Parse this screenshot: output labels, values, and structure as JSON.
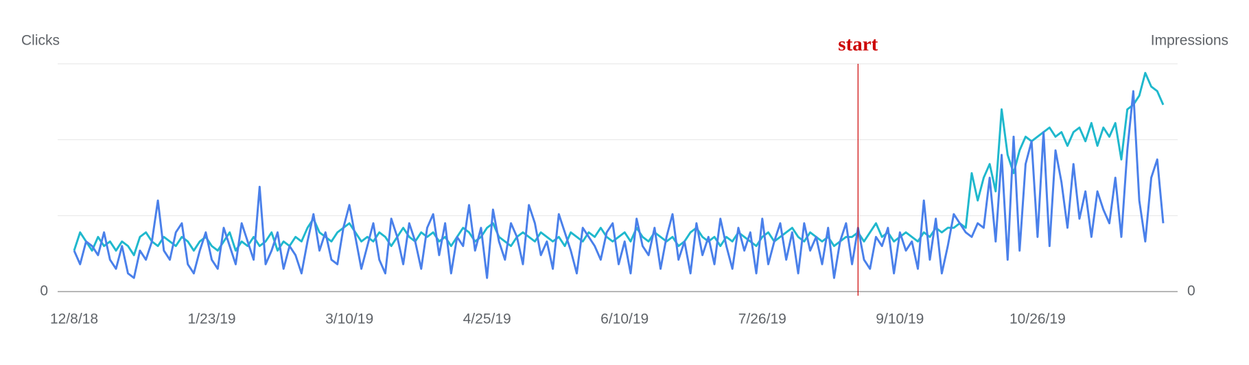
{
  "chart_data": {
    "type": "line",
    "categories": [
      "12/8/18",
      null,
      null,
      null,
      null,
      null,
      null,
      null,
      null,
      null,
      null,
      null,
      null,
      null,
      null,
      null,
      null,
      null,
      null,
      null,
      null,
      null,
      null,
      "1/23/19",
      null,
      null,
      null,
      null,
      null,
      null,
      null,
      null,
      null,
      null,
      null,
      null,
      null,
      null,
      null,
      null,
      null,
      null,
      null,
      null,
      null,
      null,
      "3/10/19",
      null,
      null,
      null,
      null,
      null,
      null,
      null,
      null,
      null,
      null,
      null,
      null,
      null,
      null,
      null,
      null,
      null,
      null,
      null,
      null,
      null,
      null,
      "4/25/19",
      null,
      null,
      null,
      null,
      null,
      null,
      null,
      null,
      null,
      null,
      null,
      null,
      null,
      null,
      null,
      null,
      null,
      null,
      null,
      null,
      null,
      null,
      "6/10/19",
      null,
      null,
      null,
      null,
      null,
      null,
      null,
      null,
      null,
      null,
      null,
      null,
      null,
      null,
      null,
      null,
      null,
      null,
      null,
      null,
      null,
      null,
      "7/26/19",
      null,
      null,
      null,
      null,
      null,
      null,
      null,
      null,
      null,
      null,
      null,
      null,
      null,
      null,
      null,
      null,
      null,
      null,
      null,
      null,
      null,
      null,
      "9/10/19",
      null,
      null,
      null,
      null,
      null,
      null,
      null,
      null,
      null,
      null,
      null,
      null,
      null,
      null,
      null,
      null,
      null,
      null,
      null,
      null,
      null,
      null,
      "10/26/19",
      null,
      null,
      null,
      null,
      null,
      null,
      null,
      null,
      null,
      null,
      null,
      null,
      null,
      null,
      null,
      null,
      null,
      null,
      null,
      null,
      null
    ],
    "series": [
      {
        "name": "Clicks",
        "color": "#4a80ea",
        "values": [
          18,
          12,
          22,
          20,
          16,
          26,
          14,
          10,
          20,
          8,
          6,
          18,
          14,
          22,
          40,
          18,
          14,
          26,
          30,
          12,
          8,
          18,
          26,
          14,
          10,
          28,
          20,
          12,
          30,
          22,
          14,
          46,
          12,
          18,
          26,
          10,
          20,
          16,
          8,
          22,
          34,
          18,
          26,
          14,
          12,
          28,
          38,
          24,
          10,
          20,
          30,
          14,
          8,
          32,
          24,
          12,
          30,
          22,
          10,
          28,
          34,
          16,
          30,
          8,
          24,
          20,
          38,
          18,
          28,
          6,
          36,
          22,
          14,
          30,
          24,
          12,
          38,
          30,
          16,
          22,
          10,
          34,
          26,
          18,
          8,
          28,
          24,
          20,
          14,
          26,
          30,
          12,
          22,
          8,
          32,
          20,
          16,
          28,
          10,
          24,
          34,
          14,
          22,
          8,
          30,
          16,
          24,
          12,
          32,
          20,
          10,
          28,
          18,
          26,
          8,
          32,
          12,
          22,
          30,
          14,
          26,
          8,
          30,
          18,
          24,
          12,
          28,
          6,
          22,
          30,
          12,
          28,
          14,
          10,
          24,
          20,
          28,
          8,
          26,
          18,
          22,
          10,
          40,
          14,
          32,
          8,
          20,
          34,
          30,
          26,
          24,
          30,
          28,
          50,
          22,
          60,
          14,
          68,
          18,
          56,
          66,
          24,
          70,
          20,
          62,
          48,
          28,
          56,
          32,
          44,
          24,
          44,
          36,
          30,
          50,
          24,
          62,
          88,
          40,
          22,
          50,
          58,
          30
        ]
      },
      {
        "name": "Impressions",
        "color": "#1fb8cd",
        "axis": "y2",
        "values": [
          18,
          26,
          22,
          18,
          24,
          20,
          22,
          18,
          22,
          20,
          16,
          24,
          26,
          22,
          20,
          24,
          22,
          20,
          24,
          22,
          18,
          22,
          24,
          20,
          18,
          22,
          26,
          18,
          22,
          20,
          24,
          20,
          22,
          26,
          18,
          22,
          20,
          24,
          22,
          28,
          32,
          26,
          24,
          22,
          26,
          28,
          30,
          26,
          22,
          24,
          22,
          26,
          24,
          20,
          24,
          28,
          24,
          22,
          26,
          24,
          26,
          22,
          24,
          20,
          24,
          28,
          26,
          22,
          24,
          28,
          30,
          24,
          22,
          20,
          24,
          26,
          24,
          22,
          26,
          24,
          22,
          24,
          20,
          26,
          24,
          22,
          26,
          24,
          28,
          24,
          22,
          24,
          26,
          22,
          28,
          24,
          22,
          26,
          24,
          22,
          24,
          20,
          22,
          26,
          28,
          24,
          22,
          24,
          20,
          24,
          22,
          26,
          24,
          22,
          20,
          24,
          26,
          22,
          24,
          26,
          28,
          24,
          22,
          26,
          24,
          22,
          24,
          20,
          22,
          24,
          24,
          26,
          22,
          26,
          30,
          24,
          26,
          22,
          24,
          26,
          24,
          22,
          26,
          24,
          28,
          26,
          28,
          28,
          30,
          28,
          52,
          40,
          50,
          56,
          44,
          80,
          60,
          52,
          62,
          68,
          66,
          68,
          70,
          72,
          68,
          70,
          64,
          70,
          72,
          66,
          74,
          64,
          72,
          68,
          74,
          58,
          80,
          82,
          86,
          96,
          90,
          88,
          82
        ]
      }
    ],
    "ylim": [
      0,
      100
    ],
    "yticks": [
      0
    ],
    "y2lim": [
      0,
      100
    ],
    "y2ticks": [
      0
    ],
    "grid": true,
    "annotations": [
      {
        "label": "start",
        "at": 131,
        "color": "#cc0000"
      }
    ]
  }
}
